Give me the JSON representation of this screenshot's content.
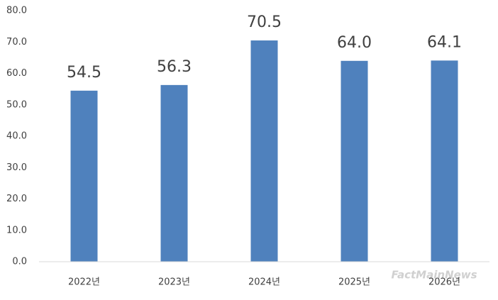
{
  "chart_data": {
    "type": "bar",
    "categories": [
      "2022년",
      "2023년",
      "2024년",
      "2025년",
      "2026년"
    ],
    "values": [
      54.5,
      56.3,
      70.5,
      64.0,
      64.1
    ],
    "value_labels": [
      "54.5",
      "56.3",
      "70.5",
      "64.0",
      "64.1"
    ],
    "color": "#4f81bd",
    "ylim": [
      0,
      80
    ],
    "yticks": [
      {
        "value": 0,
        "label": "0.0"
      },
      {
        "value": 10,
        "label": "10.0"
      },
      {
        "value": 20,
        "label": "20.0"
      },
      {
        "value": 30,
        "label": "30.0"
      },
      {
        "value": 40,
        "label": "40.0"
      },
      {
        "value": 50,
        "label": "50.0"
      },
      {
        "value": 60,
        "label": "60.0"
      },
      {
        "value": 70,
        "label": "70.0"
      },
      {
        "value": 80,
        "label": "80.0"
      }
    ],
    "grid": false,
    "watermark": "FactMainNews"
  }
}
